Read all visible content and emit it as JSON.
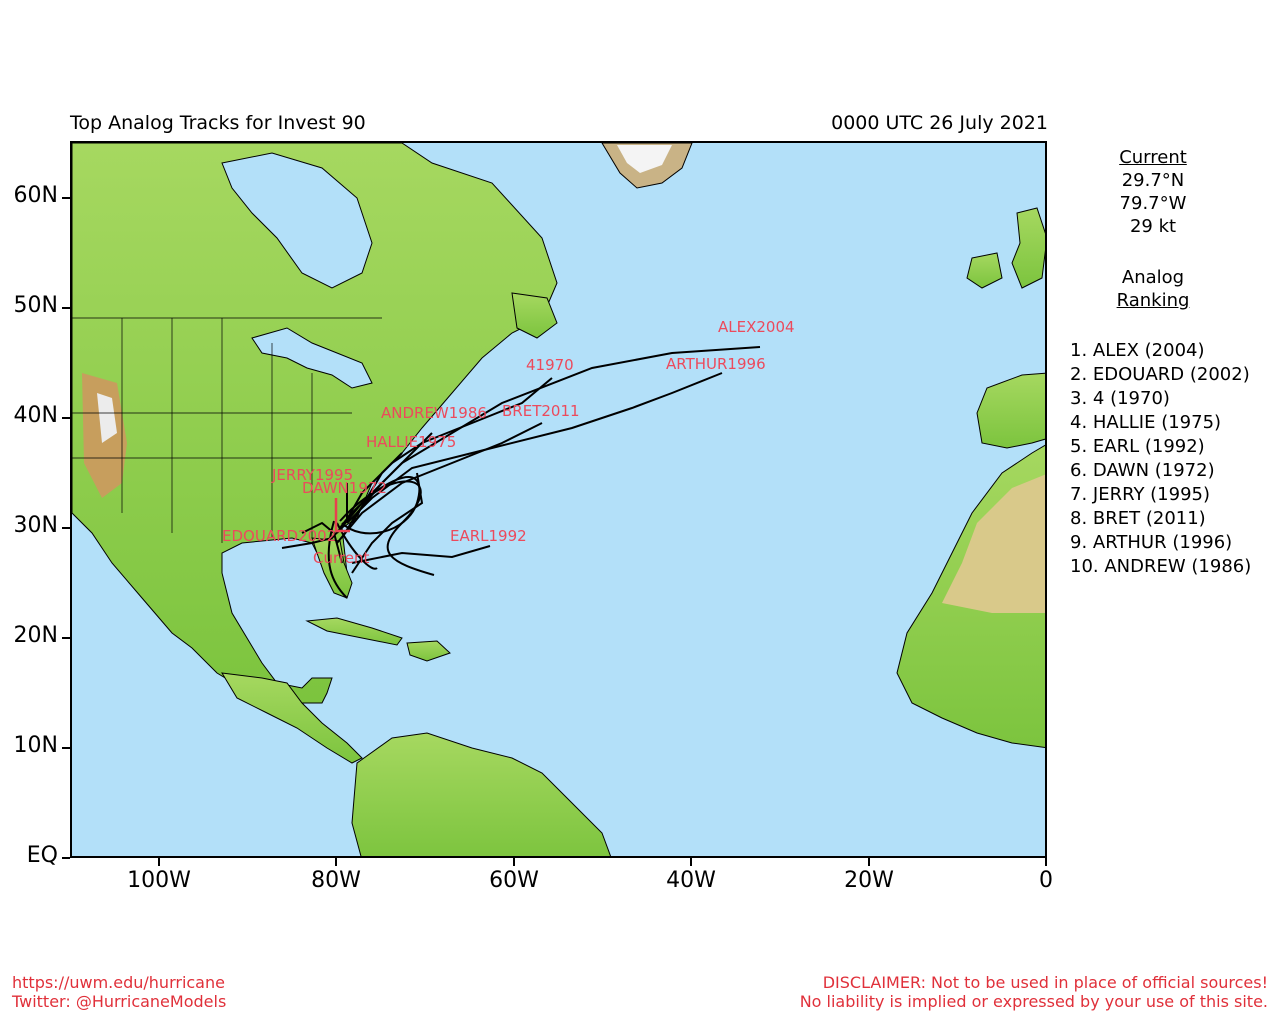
{
  "header": {
    "title": "Top Analog Tracks for Invest 90",
    "datetime": "0000 UTC 26 July 2021"
  },
  "axes": {
    "lat_labels": [
      "60N",
      "50N",
      "40N",
      "30N",
      "20N",
      "10N",
      "EQ"
    ],
    "lon_labels": [
      "100W",
      "80W",
      "60W",
      "40W",
      "20W",
      "0"
    ]
  },
  "current": {
    "heading": "Current",
    "lat": "29.7°N",
    "lon": "79.7°W",
    "wind": "29 kt",
    "map_label": "Current"
  },
  "analog": {
    "heading_line1": "Analog",
    "heading_line2": "Ranking",
    "ranking": [
      "1.  ALEX (2004)",
      "2.  EDOUARD (2002)",
      "3.  4 (1970)",
      "4.  HALLIE (1975)",
      "5.  EARL (1992)",
      "6.  DAWN (1972)",
      "7.  JERRY (1995)",
      "8.  BRET (2011)",
      "9.  ARTHUR (1996)",
      "10. ANDREW (1986)"
    ]
  },
  "track_labels": {
    "alex": "ALEX2004",
    "arthur": "ARTHUR1996",
    "four": "41970",
    "andrew": "ANDREW1986",
    "bret": "BRET2011",
    "hallie": "HALLIE1975",
    "jerry": "JERRY1995",
    "dawn": "DAWN1972",
    "edouard": "EDOUARD2002",
    "earl": "EARL1992"
  },
  "footer": {
    "url": "https://uwm.edu/hurricane",
    "twitter": "Twitter: @HurricaneModels",
    "disclaimer1": "DISCLAIMER: Not to be used in place of official sources!",
    "disclaimer2": "No liability is implied or expressed by your use of this site."
  },
  "colors": {
    "ocean": "#b3e0f9",
    "land": "#8fd14f",
    "track": "#000000",
    "label": "#ec4a5c"
  }
}
